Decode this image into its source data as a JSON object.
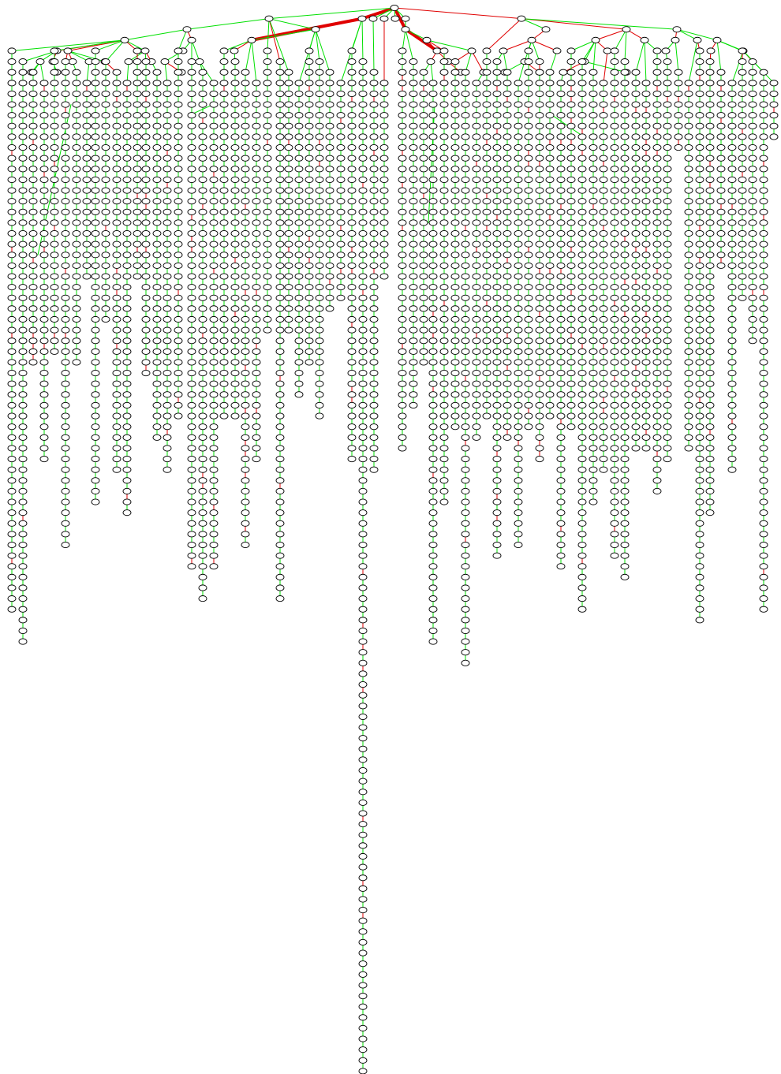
{
  "diagram": {
    "type": "tree",
    "root_label": "",
    "node_shape": "ellipse",
    "node_labels_visible": false,
    "colors": {
      "node_fill": "#ffffff",
      "node_stroke": "#000000",
      "edge_primary": "#00e000",
      "edge_secondary": "#e00000",
      "background": "#ffffff"
    },
    "top_level_branch_count": 34,
    "max_depth_levels": 99
  }
}
